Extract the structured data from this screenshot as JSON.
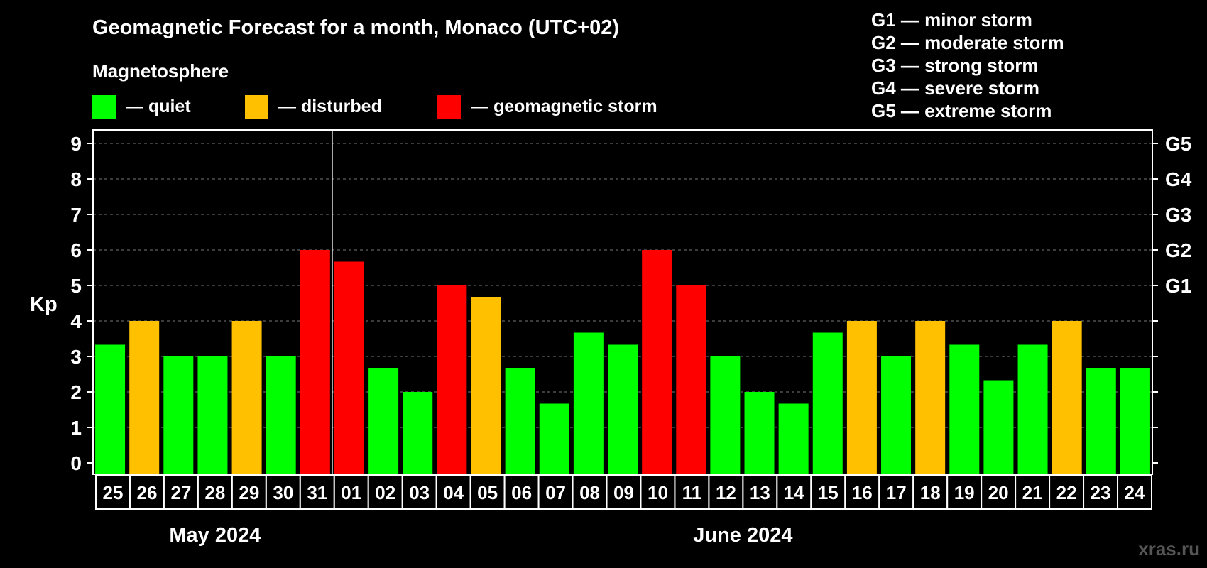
{
  "chart_data": {
    "type": "bar",
    "title": "Geomagnetic Forecast for a month, Monaco (UTC+02)",
    "subtitle": "Magnetosphere",
    "ylabel": "Kp",
    "ylim": [
      0,
      9
    ],
    "yticks": [
      "0",
      "1",
      "2",
      "3",
      "4",
      "5",
      "6",
      "7",
      "8",
      "9"
    ],
    "grid": true,
    "legend": [
      {
        "label": "— quiet",
        "color": "#00ff00"
      },
      {
        "label": "— disturbed",
        "color": "#ffc000"
      },
      {
        "label": "— geomagnetic storm",
        "color": "#ff0000"
      }
    ],
    "storm_legend": [
      "G1 — minor storm",
      "G2 — moderate storm",
      "G3 — strong storm",
      "G4 — severe storm",
      "G5 — extreme storm"
    ],
    "right_axis": [
      {
        "label": "G1",
        "kp": 5
      },
      {
        "label": "G2",
        "kp": 6
      },
      {
        "label": "G3",
        "kp": 7
      },
      {
        "label": "G4",
        "kp": 8
      },
      {
        "label": "G5",
        "kp": 9
      }
    ],
    "categories": [
      "25",
      "26",
      "27",
      "28",
      "29",
      "30",
      "31",
      "01",
      "02",
      "03",
      "04",
      "05",
      "06",
      "07",
      "08",
      "09",
      "10",
      "11",
      "12",
      "13",
      "14",
      "15",
      "16",
      "17",
      "18",
      "19",
      "20",
      "21",
      "22",
      "23",
      "24"
    ],
    "values": [
      3.33,
      4,
      3,
      3,
      4,
      3,
      6,
      5.67,
      2.67,
      2,
      5,
      4.67,
      2.67,
      1.67,
      3.67,
      3.33,
      6,
      5,
      3,
      2,
      1.67,
      3.67,
      4,
      3,
      4,
      3.33,
      2.33,
      3.33,
      4,
      2.67,
      2.67
    ],
    "status": [
      "quiet",
      "disturbed",
      "quiet",
      "quiet",
      "disturbed",
      "quiet",
      "storm",
      "storm",
      "quiet",
      "quiet",
      "storm",
      "disturbed",
      "quiet",
      "quiet",
      "quiet",
      "quiet",
      "storm",
      "storm",
      "quiet",
      "quiet",
      "quiet",
      "quiet",
      "disturbed",
      "quiet",
      "disturbed",
      "quiet",
      "quiet",
      "quiet",
      "disturbed",
      "quiet",
      "quiet"
    ],
    "colors": {
      "quiet": "#00ff00",
      "disturbed": "#ffc000",
      "storm": "#ff0000"
    },
    "months": [
      {
        "label": "May 2024",
        "start": 0,
        "end": 6
      },
      {
        "label": "June 2024",
        "start": 7,
        "end": 30
      }
    ],
    "watermark": "xras.ru"
  }
}
